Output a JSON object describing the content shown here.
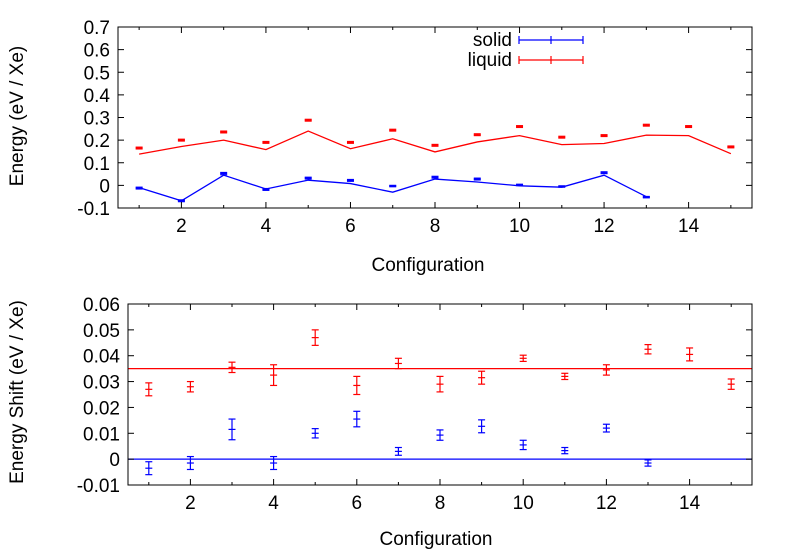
{
  "chart_data": [
    {
      "type": "line",
      "title": "",
      "xlabel": "Configuration",
      "ylabel": "Energy (eV / Xe)",
      "xlim": [
        0.5,
        15.5
      ],
      "ylim": [
        -0.1,
        0.7
      ],
      "x_ticks": [
        2,
        4,
        6,
        8,
        10,
        12,
        14
      ],
      "y_ticks": [
        -0.1,
        0,
        0.1,
        0.2,
        0.3,
        0.4,
        0.5,
        0.6,
        0.7
      ],
      "y_tick_labels": [
        "-0.1",
        "0",
        "0.1",
        "0.2",
        "0.3",
        "0.4",
        "0.5",
        "0.6",
        "0.7"
      ],
      "grid": false,
      "legend_position": "top-right",
      "series": [
        {
          "name": "solid",
          "color": "#0000ff",
          "points_x": [
            1,
            2,
            3,
            4,
            5,
            6,
            7,
            8,
            9,
            10,
            11,
            12,
            13
          ],
          "points_y": [
            -0.012,
            -0.068,
            0.052,
            -0.018,
            0.032,
            0.022,
            -0.003,
            0.036,
            0.028,
            0.002,
            -0.005,
            0.056,
            -0.052
          ],
          "errors": [
            0.004,
            0.004,
            0.005,
            0.004,
            0.004,
            0.004,
            0.003,
            0.004,
            0.004,
            0.003,
            0.003,
            0.004,
            0.003
          ],
          "line_x": [
            1,
            2,
            3,
            4,
            5,
            6,
            7,
            8,
            9,
            10,
            11,
            12,
            13
          ],
          "line_y": [
            -0.01,
            -0.068,
            0.045,
            -0.016,
            0.023,
            0.008,
            -0.03,
            0.028,
            0.015,
            -0.002,
            -0.008,
            0.045,
            -0.05
          ]
        },
        {
          "name": "liquid",
          "color": "#ff0000",
          "points_x": [
            1,
            2,
            3,
            4,
            5,
            6,
            7,
            8,
            9,
            10,
            11,
            12,
            13,
            14,
            15
          ],
          "points_y": [
            0.165,
            0.2,
            0.236,
            0.19,
            0.288,
            0.19,
            0.244,
            0.177,
            0.224,
            0.26,
            0.213,
            0.22,
            0.266,
            0.26,
            0.17
          ],
          "errors": [
            0.004,
            0.004,
            0.004,
            0.004,
            0.004,
            0.004,
            0.004,
            0.004,
            0.004,
            0.004,
            0.004,
            0.004,
            0.004,
            0.004,
            0.004
          ],
          "line_x": [
            1,
            2,
            3,
            4,
            5,
            6,
            7,
            8,
            9,
            10,
            11,
            12,
            13,
            14,
            15
          ],
          "line_y": [
            0.138,
            0.172,
            0.2,
            0.158,
            0.24,
            0.162,
            0.206,
            0.148,
            0.192,
            0.22,
            0.18,
            0.185,
            0.222,
            0.22,
            0.14
          ]
        }
      ]
    },
    {
      "type": "scatter",
      "title": "",
      "xlabel": "Configuration",
      "ylabel": "Energy Shift (eV / Xe)",
      "xlim": [
        0.5,
        15.5
      ],
      "ylim": [
        -0.01,
        0.06
      ],
      "x_ticks": [
        2,
        4,
        6,
        8,
        10,
        12,
        14
      ],
      "y_ticks": [
        -0.01,
        0,
        0.01,
        0.02,
        0.03,
        0.04,
        0.05,
        0.06
      ],
      "y_tick_labels": [
        "-0.01",
        "0",
        "0.01",
        "0.02",
        "0.03",
        "0.04",
        "0.05",
        "0.06"
      ],
      "grid": false,
      "series": [
        {
          "color": "#ff0000",
          "x": [
            1,
            2,
            3,
            4,
            5,
            6,
            7,
            8,
            9,
            10,
            11,
            12,
            13,
            14,
            15
          ],
          "y": [
            0.027,
            0.028,
            0.0355,
            0.0325,
            0.047,
            0.0285,
            0.037,
            0.029,
            0.0315,
            0.039,
            0.032,
            0.0345,
            0.0425,
            0.0405,
            0.029
          ],
          "errors": [
            0.0025,
            0.002,
            0.002,
            0.004,
            0.003,
            0.0035,
            0.002,
            0.003,
            0.0025,
            0.0012,
            0.0012,
            0.002,
            0.0018,
            0.0025,
            0.002
          ],
          "reference_y": 0.035
        },
        {
          "color": "#0000ff",
          "x": [
            1,
            2,
            3,
            4,
            5,
            6,
            7,
            8,
            9,
            10,
            11,
            12,
            13
          ],
          "y": [
            -0.0035,
            -0.0015,
            0.0115,
            -0.0015,
            0.01,
            0.0155,
            0.003,
            0.0093,
            0.0127,
            0.0055,
            0.0033,
            0.012,
            -0.0015
          ],
          "errors": [
            0.0025,
            0.0025,
            0.004,
            0.0025,
            0.0018,
            0.003,
            0.0015,
            0.002,
            0.0025,
            0.0018,
            0.0012,
            0.0015,
            0.0012
          ],
          "reference_y": 0
        }
      ]
    }
  ]
}
